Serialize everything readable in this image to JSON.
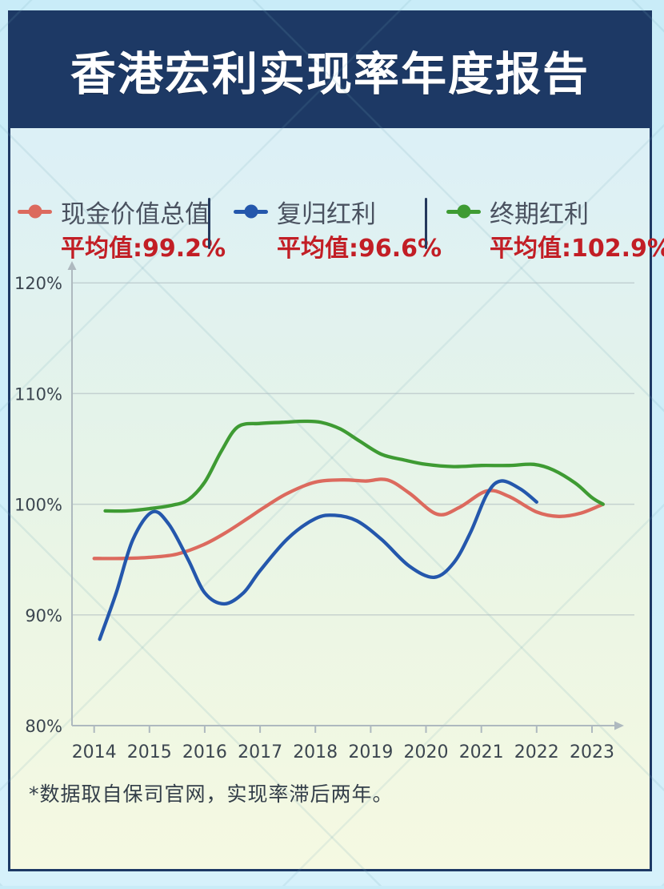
{
  "page": {
    "title": "香港宏利实现率年度报告"
  },
  "legend": {
    "items": [
      {
        "id": "cash-value",
        "label": "现金价值总值",
        "avg": "平均值:99.2%",
        "color": "#dc6a5e"
      },
      {
        "id": "reversionary-bonus",
        "label": "复归红利",
        "avg": "平均值:96.6%",
        "color": "#2457ac"
      },
      {
        "id": "terminal-bonus",
        "label": "终期红利",
        "avg": "平均值:102.9%",
        "color": "#3e9b33"
      }
    ]
  },
  "footnote": "*数据取自保司官网，实现率滞后两年。",
  "colors": {
    "banner_navy": "#1d3965",
    "avg_value_red": "#c21e25",
    "axis_gray": "#aeb9bf",
    "grid_gray": "#aab7bd",
    "tick_text": "#3c4650"
  },
  "chart_data": {
    "type": "line",
    "title": "香港宏利实现率年度报告",
    "xlabel": "",
    "ylabel": "",
    "x_tick_labels": [
      "2014",
      "2015",
      "2016",
      "2017",
      "2018",
      "2019",
      "2020",
      "2021",
      "2022",
      "2023"
    ],
    "x_tick_values": [
      2014,
      2015,
      2016,
      2017,
      2018,
      2019,
      2020,
      2021,
      2022,
      2023
    ],
    "y_tick_labels": [
      "120%",
      "110%",
      "100%",
      "90%",
      "80%"
    ],
    "y_tick_values": [
      120,
      110,
      100,
      90,
      80
    ],
    "xlim": [
      2013.6,
      2023.55
    ],
    "ylim": [
      80,
      121.1
    ],
    "grid": true,
    "legend_position": "top",
    "series": [
      {
        "id": "cash-value",
        "name": "现金价值总值",
        "average": "99.2%",
        "color": "#dc6a5e",
        "points": [
          [
            2014.0,
            95.1
          ],
          [
            2014.5,
            95.1
          ],
          [
            2015.0,
            95.2
          ],
          [
            2015.5,
            95.5
          ],
          [
            2016.0,
            96.4
          ],
          [
            2016.4,
            97.5
          ],
          [
            2016.8,
            98.8
          ],
          [
            2017.1,
            99.8
          ],
          [
            2017.5,
            101.0
          ],
          [
            2018.0,
            102.0
          ],
          [
            2018.5,
            102.2
          ],
          [
            2018.9,
            102.1
          ],
          [
            2019.3,
            102.2
          ],
          [
            2019.7,
            101.0
          ],
          [
            2020.2,
            99.1
          ],
          [
            2020.6,
            99.7
          ],
          [
            2021.1,
            101.2
          ],
          [
            2021.5,
            100.7
          ],
          [
            2022.0,
            99.3
          ],
          [
            2022.4,
            98.9
          ],
          [
            2022.8,
            99.2
          ],
          [
            2023.2,
            100.0
          ]
        ]
      },
      {
        "id": "reversionary-bonus",
        "name": "复归红利",
        "average": "96.6%",
        "color": "#2457ac",
        "points": [
          [
            2014.1,
            87.8
          ],
          [
            2014.4,
            92.0
          ],
          [
            2014.7,
            96.8
          ],
          [
            2015.05,
            99.3
          ],
          [
            2015.35,
            98.2
          ],
          [
            2015.7,
            95.0
          ],
          [
            2016.0,
            92.0
          ],
          [
            2016.35,
            91.0
          ],
          [
            2016.7,
            92.0
          ],
          [
            2017.0,
            94.0
          ],
          [
            2017.5,
            96.9
          ],
          [
            2018.0,
            98.7
          ],
          [
            2018.35,
            99.0
          ],
          [
            2018.75,
            98.5
          ],
          [
            2019.2,
            96.8
          ],
          [
            2019.7,
            94.4
          ],
          [
            2020.15,
            93.4
          ],
          [
            2020.5,
            94.7
          ],
          [
            2020.8,
            97.4
          ],
          [
            2021.1,
            100.9
          ],
          [
            2021.35,
            102.1
          ],
          [
            2021.7,
            101.4
          ],
          [
            2022.0,
            100.2
          ]
        ]
      },
      {
        "id": "terminal-bonus",
        "name": "终期红利",
        "average": "102.9%",
        "color": "#3e9b33",
        "points": [
          [
            2014.2,
            99.4
          ],
          [
            2014.6,
            99.4
          ],
          [
            2015.0,
            99.6
          ],
          [
            2015.4,
            99.9
          ],
          [
            2015.7,
            100.4
          ],
          [
            2016.0,
            102.0
          ],
          [
            2016.3,
            104.8
          ],
          [
            2016.6,
            107.0
          ],
          [
            2017.0,
            107.3
          ],
          [
            2017.4,
            107.4
          ],
          [
            2017.8,
            107.5
          ],
          [
            2018.1,
            107.4
          ],
          [
            2018.45,
            106.8
          ],
          [
            2018.8,
            105.7
          ],
          [
            2019.2,
            104.5
          ],
          [
            2019.6,
            104.0
          ],
          [
            2020.0,
            103.6
          ],
          [
            2020.5,
            103.4
          ],
          [
            2021.0,
            103.5
          ],
          [
            2021.5,
            103.5
          ],
          [
            2021.95,
            103.6
          ],
          [
            2022.3,
            103.1
          ],
          [
            2022.7,
            101.9
          ],
          [
            2023.0,
            100.6
          ],
          [
            2023.2,
            100.0
          ]
        ]
      }
    ]
  }
}
